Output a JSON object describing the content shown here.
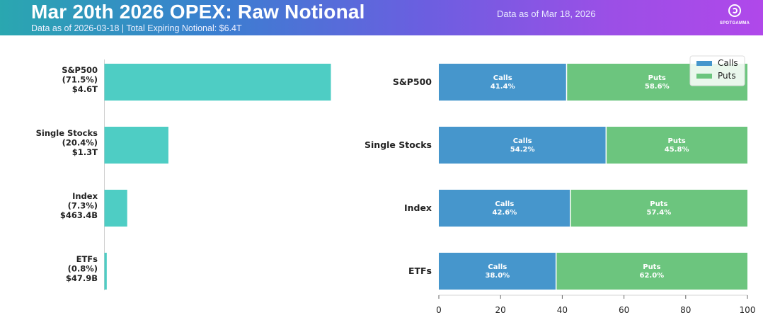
{
  "header": {
    "title": "Mar 20th 2026 OPEX: Raw Notional",
    "subtitle": "Data as of 2026-03-18 | Total Expiring Notional: $6.4T",
    "as_of": "Data as of Mar 18, 2026",
    "logo_text": "SPOTGAMMA",
    "logo_icon": "spotgamma-logo-icon",
    "gradient_colors": [
      "#2aa7b0",
      "#3a7fd0",
      "#6a5fe0",
      "#9b4fe6",
      "#b048ea"
    ]
  },
  "chart_data": [
    {
      "type": "bar",
      "orientation": "horizontal",
      "categories": [
        "S&P500",
        "Single Stocks",
        "Index",
        "ETFs"
      ],
      "category_labels": [
        [
          "S&P500",
          "(71.5%)",
          "$4.6T"
        ],
        [
          "Single Stocks",
          "(20.4%)",
          "$1.3T"
        ],
        [
          "Index",
          "(7.3%)",
          "$463.4B"
        ],
        [
          "ETFs",
          "(0.8%)",
          "$47.9B"
        ]
      ],
      "values": [
        4.6,
        1.3,
        0.4634,
        0.0479
      ],
      "units": "USD trillions",
      "color": "#4ecdc4"
    },
    {
      "type": "bar",
      "orientation": "horizontal",
      "stacked": true,
      "categories": [
        "S&P500",
        "Single Stocks",
        "Index",
        "ETFs"
      ],
      "series": [
        {
          "name": "Calls",
          "label": "Calls",
          "values": [
            41.4,
            54.2,
            42.6,
            38.0
          ],
          "value_labels": [
            "41.4%",
            "54.2%",
            "42.6%",
            "38.0%"
          ],
          "color": "#4696cc"
        },
        {
          "name": "Puts",
          "label": "Puts",
          "values": [
            58.6,
            45.8,
            57.4,
            62.0
          ],
          "value_labels": [
            "58.6%",
            "45.8%",
            "57.4%",
            "62.0%"
          ],
          "color": "#6cc57e"
        }
      ],
      "xlim": [
        0,
        100
      ],
      "xticks": [
        "0",
        "20",
        "40",
        "60",
        "80",
        "100"
      ],
      "legend": "top-right"
    }
  ]
}
